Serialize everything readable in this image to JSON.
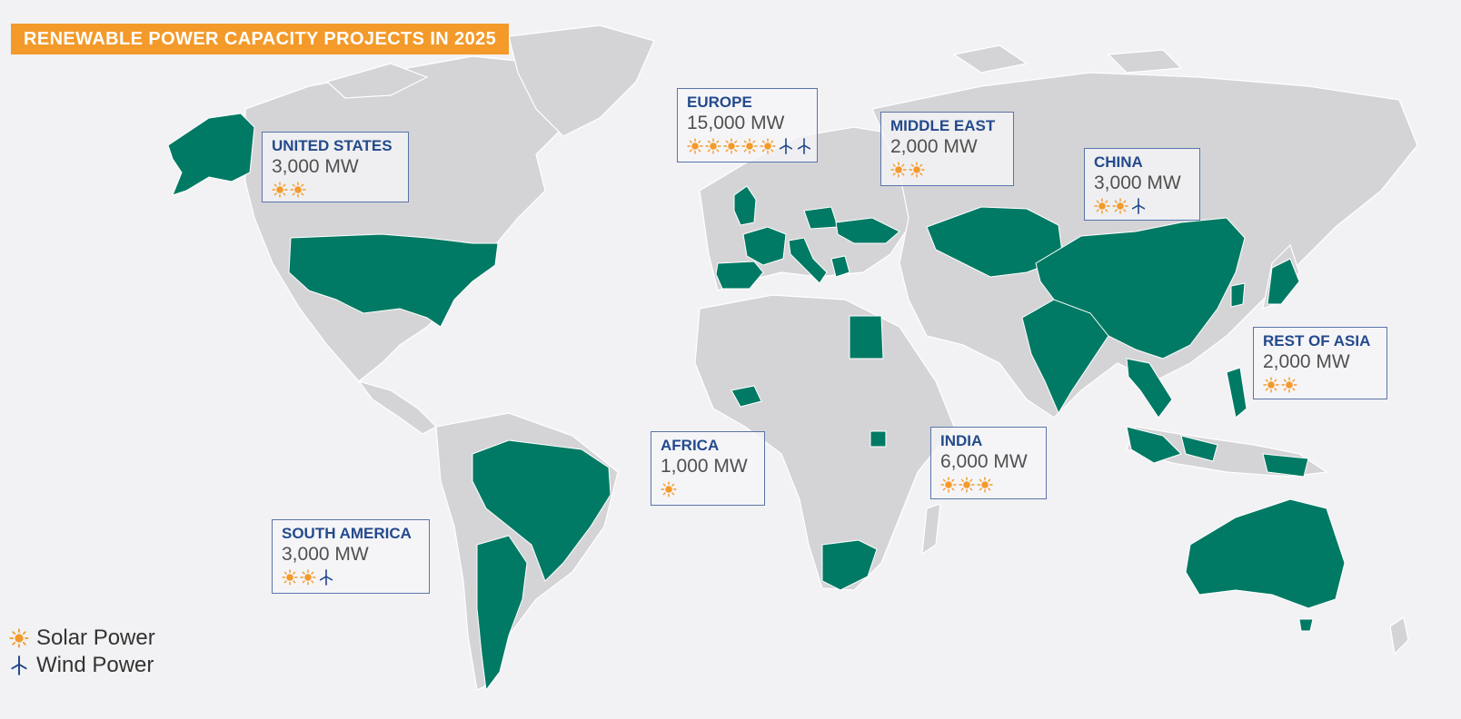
{
  "title": "RENEWABLE POWER CAPACITY PROJECTS IN 2025",
  "colors": {
    "background": "#f2f2f4",
    "land": "#d4d4d7",
    "highlighted_country": "#007a64",
    "title_banner": "#f39a2a",
    "box_border": "#5a74a8",
    "region_name": "#244a8c",
    "solar_icon": "#f39a2a",
    "wind_icon": "#244a8c"
  },
  "regions": [
    {
      "name": "UNITED STATES",
      "capacity": "3,000 MW",
      "solar": 2,
      "wind": 0
    },
    {
      "name": "EUROPE",
      "capacity": "15,000 MW",
      "solar": 5,
      "wind": 2
    },
    {
      "name": "MIDDLE EAST",
      "capacity": "2,000 MW",
      "solar": 2,
      "wind": 0
    },
    {
      "name": "CHINA",
      "capacity": "3,000 MW",
      "solar": 2,
      "wind": 1
    },
    {
      "name": "REST OF ASIA",
      "capacity": "2,000 MW",
      "solar": 2,
      "wind": 0
    },
    {
      "name": "AFRICA",
      "capacity": "1,000 MW",
      "solar": 1,
      "wind": 0
    },
    {
      "name": "INDIA",
      "capacity": "6,000 MW",
      "solar": 3,
      "wind": 0
    },
    {
      "name": "SOUTH AMERICA",
      "capacity": "3,000 MW",
      "solar": 2,
      "wind": 1
    }
  ],
  "legend": {
    "solar_label": "Solar Power",
    "solar_icon": "sun-icon",
    "wind_label": "Wind Power",
    "wind_icon": "wind-turbine-icon"
  }
}
